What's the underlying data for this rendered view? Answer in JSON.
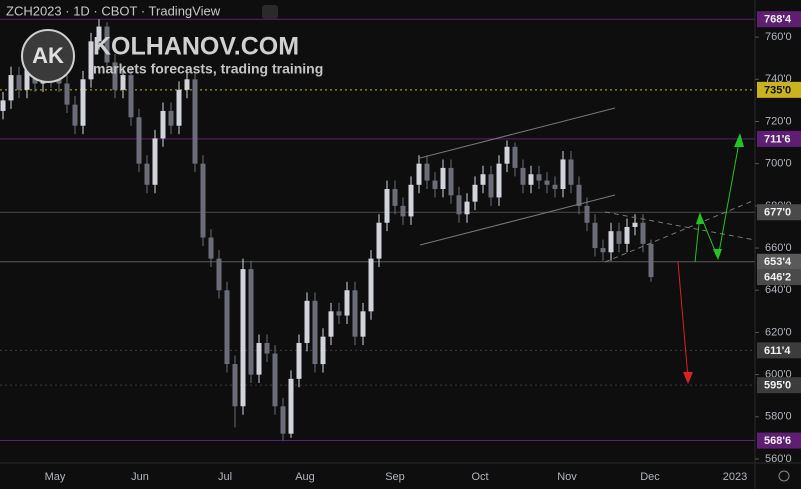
{
  "header": "ZCH2023 · 1D · CBOT · TradingView",
  "watermark": {
    "logo": "AK",
    "title": "KOLHANOV.COM",
    "subtitle": "markets forecasts, trading training"
  },
  "chart_data": {
    "type": "candlestick",
    "x_axis_labels": [
      "May",
      "Jun",
      "Jul",
      "Aug",
      "Sep",
      "Oct",
      "Nov",
      "Dec",
      "2023"
    ],
    "ylim": [
      558.1,
      777.6
    ],
    "yticks": [
      {
        "value": 560,
        "label": "560'0"
      },
      {
        "value": 580,
        "label": "580'0"
      },
      {
        "value": 600,
        "label": "600'0"
      },
      {
        "value": 620,
        "label": "620'0"
      },
      {
        "value": 640,
        "label": "640'0"
      },
      {
        "value": 660,
        "label": "660'0"
      },
      {
        "value": 680,
        "label": "680'0"
      },
      {
        "value": 700,
        "label": "700'0"
      },
      {
        "value": 720,
        "label": "720'0"
      },
      {
        "value": 740,
        "label": "740'0"
      },
      {
        "value": 760,
        "label": "760'0"
      }
    ],
    "up_color": "#d1d4dc",
    "down_color": "#6a6d78",
    "levels": [
      {
        "value": 768.5,
        "label": "768'4",
        "color": "#5e1f72",
        "style": "solid"
      },
      {
        "value": 735,
        "label": "735'0",
        "color": "#c9b420",
        "style": "dotted"
      },
      {
        "value": 711.75,
        "label": "711'6",
        "color": "#5e1f72",
        "style": "solid"
      },
      {
        "value": 677,
        "label": "677'0",
        "color": "#4a4a4a",
        "style": "solid"
      },
      {
        "value": 653.5,
        "label": "653'4",
        "color": "#5a5a5a",
        "style": "solid"
      },
      {
        "value": 646.25,
        "label": "646'2",
        "color": "#4a4a4a",
        "style": "none"
      },
      {
        "value": 611.5,
        "label": "611'4",
        "color": "#3c3c3c",
        "style": "dotted"
      },
      {
        "value": 595,
        "label": "595'0",
        "color": "#3c3c3c",
        "style": "dotted"
      },
      {
        "value": 568.75,
        "label": "568'6",
        "color": "#5e1f72",
        "style": "solid"
      }
    ],
    "ohlc": [
      [
        725,
        734,
        721,
        730
      ],
      [
        730,
        746,
        726,
        742
      ],
      [
        742,
        746,
        731,
        735
      ],
      [
        735,
        752,
        731,
        748
      ],
      [
        748,
        752,
        734,
        738
      ],
      [
        738,
        749,
        734,
        745
      ],
      [
        745,
        749,
        736,
        740
      ],
      [
        740,
        744,
        734,
        738
      ],
      [
        738,
        742,
        724,
        728
      ],
      [
        728,
        732,
        714,
        718
      ],
      [
        718,
        744,
        714,
        740
      ],
      [
        740,
        762,
        736,
        758
      ],
      [
        758,
        768.5,
        754,
        765
      ],
      [
        765,
        767,
        744,
        748
      ],
      [
        748,
        752,
        731,
        735
      ],
      [
        735,
        746,
        731,
        742
      ],
      [
        742,
        746,
        718,
        722
      ],
      [
        722,
        726,
        696,
        700
      ],
      [
        700,
        704,
        686,
        690
      ],
      [
        690,
        716,
        686,
        712
      ],
      [
        712,
        729,
        708,
        725
      ],
      [
        725,
        729,
        714,
        718
      ],
      [
        718,
        739,
        714,
        735
      ],
      [
        735,
        746,
        731,
        740
      ],
      [
        740,
        744,
        696,
        700
      ],
      [
        700,
        704,
        661,
        665
      ],
      [
        665,
        669,
        651,
        655
      ],
      [
        655,
        659,
        636,
        640
      ],
      [
        640,
        644,
        601,
        605
      ],
      [
        605,
        609,
        575,
        585
      ],
      [
        585,
        655,
        581,
        650
      ],
      [
        650,
        654,
        596,
        600
      ],
      [
        600,
        619,
        596,
        615
      ],
      [
        615,
        619,
        606,
        610
      ],
      [
        610,
        614,
        581,
        585
      ],
      [
        585,
        589,
        568.75,
        572
      ],
      [
        572,
        602,
        570,
        598
      ],
      [
        598,
        619,
        594,
        615
      ],
      [
        615,
        639,
        611,
        635
      ],
      [
        635,
        639,
        601,
        605
      ],
      [
        605,
        622,
        601,
        618
      ],
      [
        618,
        634,
        614,
        630
      ],
      [
        630,
        634,
        624,
        628
      ],
      [
        628,
        644,
        624,
        640
      ],
      [
        640,
        644,
        614,
        618
      ],
      [
        618,
        634,
        614,
        630
      ],
      [
        630,
        659,
        626,
        655
      ],
      [
        655,
        676,
        651,
        672
      ],
      [
        672,
        692,
        668,
        688
      ],
      [
        688,
        692,
        676,
        680
      ],
      [
        680,
        684,
        671,
        675
      ],
      [
        675,
        694,
        671,
        690
      ],
      [
        690,
        704,
        686,
        700
      ],
      [
        700,
        704,
        688,
        692
      ],
      [
        692,
        696,
        684,
        688
      ],
      [
        688,
        702,
        684,
        698
      ],
      [
        698,
        702,
        681,
        685
      ],
      [
        685,
        689,
        672,
        676
      ],
      [
        676,
        686,
        672,
        682
      ],
      [
        682,
        694,
        678,
        690
      ],
      [
        690,
        699,
        686,
        695
      ],
      [
        695,
        699,
        680,
        684
      ],
      [
        684,
        704,
        680,
        700
      ],
      [
        700,
        711,
        696,
        708
      ],
      [
        708,
        710,
        694,
        698
      ],
      [
        698,
        702,
        686,
        690
      ],
      [
        690,
        699,
        686,
        695
      ],
      [
        695,
        699,
        688,
        692
      ],
      [
        692,
        696,
        686,
        690
      ],
      [
        690,
        694,
        684,
        688
      ],
      [
        688,
        706,
        684,
        702
      ],
      [
        702,
        706,
        686,
        690
      ],
      [
        690,
        694,
        676,
        680
      ],
      [
        680,
        684,
        668,
        672
      ],
      [
        672,
        676,
        656,
        660
      ],
      [
        660,
        664,
        654,
        658
      ],
      [
        658,
        672,
        654,
        668
      ],
      [
        668,
        672,
        658,
        662
      ],
      [
        662,
        674,
        658,
        670
      ],
      [
        670,
        676,
        666,
        672
      ],
      [
        672,
        676,
        658,
        662
      ],
      [
        662,
        664,
        644,
        646.25
      ]
    ]
  }
}
